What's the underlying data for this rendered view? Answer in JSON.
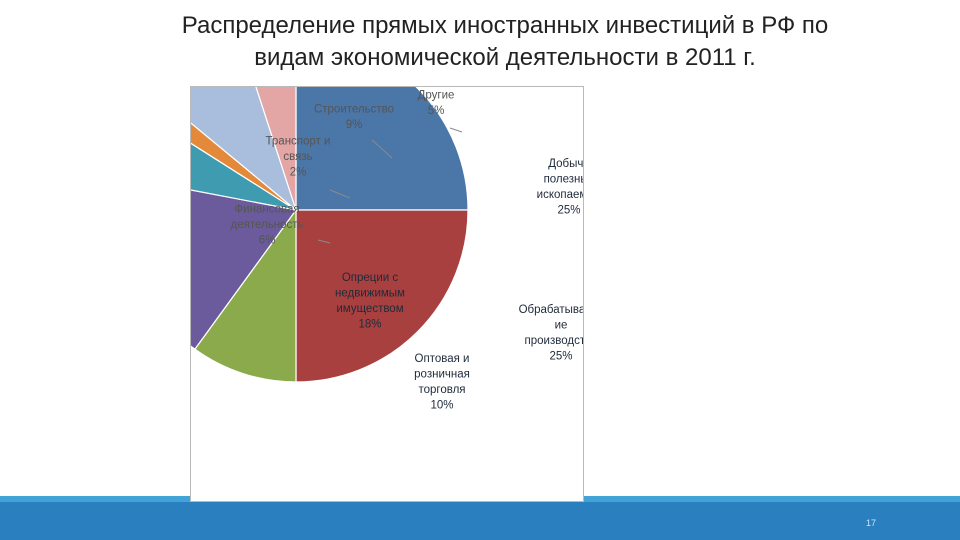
{
  "slide": {
    "title_line1": "Распределение прямых иностранных инвестиций в РФ по",
    "title_line2": "видам экономической деятельности в 2011 г.",
    "page_number": "17"
  },
  "chart_data": {
    "type": "pie",
    "start_angle_deg": 0,
    "direction": "clockwise",
    "slices": [
      {
        "name": "Добыча полезных ископаемых",
        "label_lines": [
          "Добыча",
          "полезных",
          "ископаемых",
          "25%"
        ],
        "value": 25,
        "color": "#4a76a8",
        "label_color": "#1f2a3a",
        "label_pos": "inside"
      },
      {
        "name": "Обрабатывающие производства",
        "label_lines": [
          "Обрабатывающ",
          "ие",
          "производства",
          "25%"
        ],
        "value": 25,
        "color": "#a8403f",
        "label_color": "#1f2a3a",
        "label_pos": "inside"
      },
      {
        "name": "Оптовая и розничная торговля",
        "label_lines": [
          "Оптовая и",
          "розничная",
          "торговля",
          "10%"
        ],
        "value": 10,
        "color": "#8aaa4c",
        "label_color": "#1f2a3a",
        "label_pos": "inside"
      },
      {
        "name": "Операции с недвижимым имуществом",
        "label_lines": [
          "Опреции с",
          "недвижимым",
          "имуществом",
          "18%"
        ],
        "value": 18,
        "color": "#6b5a9c",
        "label_color": "#1f2a3a",
        "label_pos": "inside"
      },
      {
        "name": "Финансовая деятельность",
        "label_lines": [
          "Финансовая",
          "деятельность",
          "6%"
        ],
        "value": 6,
        "color": "#3e9bb0",
        "label_color": "#555555",
        "label_pos": "outside"
      },
      {
        "name": "Транспорт и связь",
        "label_lines": [
          "Транспорт и",
          "связь",
          "2%"
        ],
        "value": 2,
        "color": "#e4883a",
        "label_color": "#555555",
        "label_pos": "outside"
      },
      {
        "name": "Строительство",
        "label_lines": [
          "Строительство",
          "9%"
        ],
        "value": 9,
        "color": "#a8bedc",
        "label_color": "#555555",
        "label_pos": "outside"
      },
      {
        "name": "Другие",
        "label_lines": [
          "Другие",
          "5%"
        ],
        "value": 5,
        "color": "#e3a6a4",
        "label_color": "#555555",
        "label_pos": "outside"
      }
    ]
  }
}
